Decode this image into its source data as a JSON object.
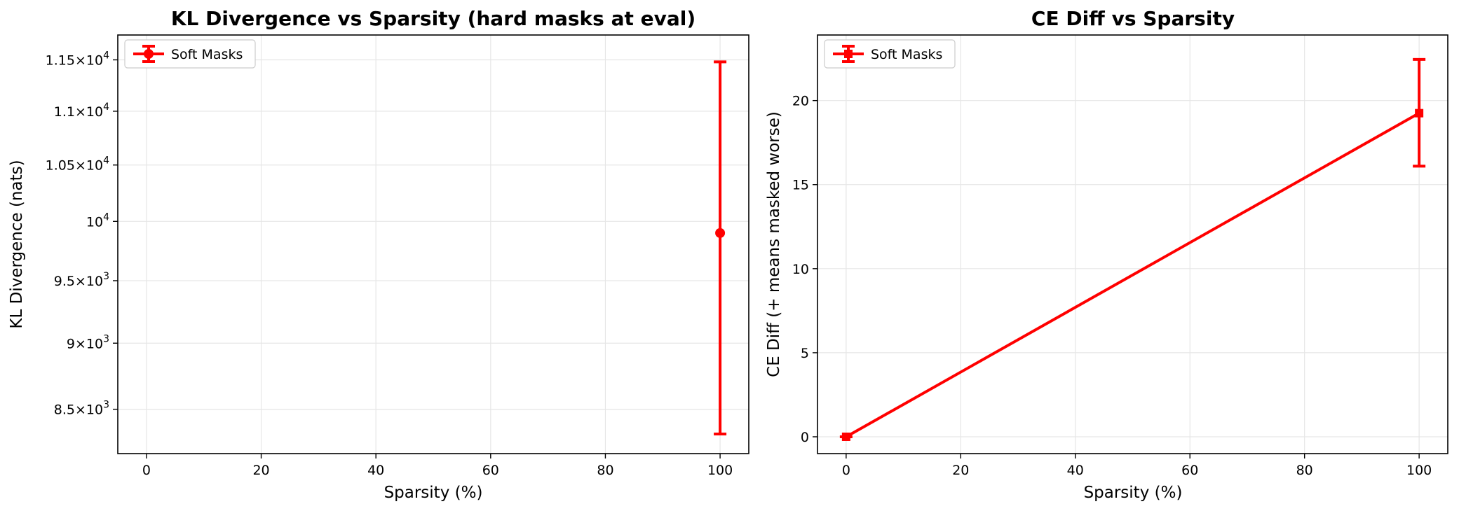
{
  "colors": {
    "series": "#ff0000",
    "grid": "#e6e6e6",
    "axis": "#000000"
  },
  "chart_data": [
    {
      "type": "scatter",
      "title": "KL Divergence vs Sparsity (hard masks at eval)",
      "xlabel": "Sparsity (%)",
      "ylabel": "KL Divergence (nats)",
      "xlim": [
        -5,
        105
      ],
      "ylim": [
        8180,
        11750
      ],
      "yscale": "log",
      "grid": true,
      "legend_position": "top-left",
      "xticks": [
        0,
        20,
        40,
        60,
        80,
        100
      ],
      "xtick_labels": [
        "0",
        "20",
        "40",
        "60",
        "80",
        "100"
      ],
      "yticks": [
        {
          "value": 8500,
          "mantissa": "8.5",
          "exp": "3"
        },
        {
          "value": 9000,
          "mantissa": "9",
          "exp": "3"
        },
        {
          "value": 9500,
          "mantissa": "9.5",
          "exp": "3"
        },
        {
          "value": 10000,
          "mantissa": "",
          "exp": "4"
        },
        {
          "value": 10500,
          "mantissa": "1.05",
          "exp": "4"
        },
        {
          "value": 11000,
          "mantissa": "1.1",
          "exp": "4"
        },
        {
          "value": 11500,
          "mantissa": "1.15",
          "exp": "4"
        }
      ],
      "series": [
        {
          "name": "Soft Masks",
          "marker": "circle",
          "points": [
            {
              "x": 100,
              "y": 9900,
              "yerr_low": 8320,
              "yerr_high": 11480
            }
          ]
        }
      ]
    },
    {
      "type": "line",
      "title": "CE Diff vs Sparsity",
      "xlabel": "Sparsity (%)",
      "ylabel": "CE Diff (+ means masked worse)",
      "xlim": [
        -5,
        105
      ],
      "ylim": [
        -1,
        23.9
      ],
      "yscale": "linear",
      "grid": true,
      "legend_position": "top-left",
      "xticks": [
        0,
        20,
        40,
        60,
        80,
        100
      ],
      "xtick_labels": [
        "0",
        "20",
        "40",
        "60",
        "80",
        "100"
      ],
      "yticks": [
        {
          "value": 0,
          "label": "0"
        },
        {
          "value": 5,
          "label": "5"
        },
        {
          "value": 10,
          "label": "10"
        },
        {
          "value": 15,
          "label": "15"
        },
        {
          "value": 20,
          "label": "20"
        }
      ],
      "series": [
        {
          "name": "Soft Masks",
          "marker": "square",
          "points": [
            {
              "x": 0,
              "y": 0,
              "yerr_low": 0,
              "yerr_high": 0
            },
            {
              "x": 100,
              "y": 19.25,
              "yerr_low": 16.1,
              "yerr_high": 22.45
            }
          ]
        }
      ]
    }
  ]
}
